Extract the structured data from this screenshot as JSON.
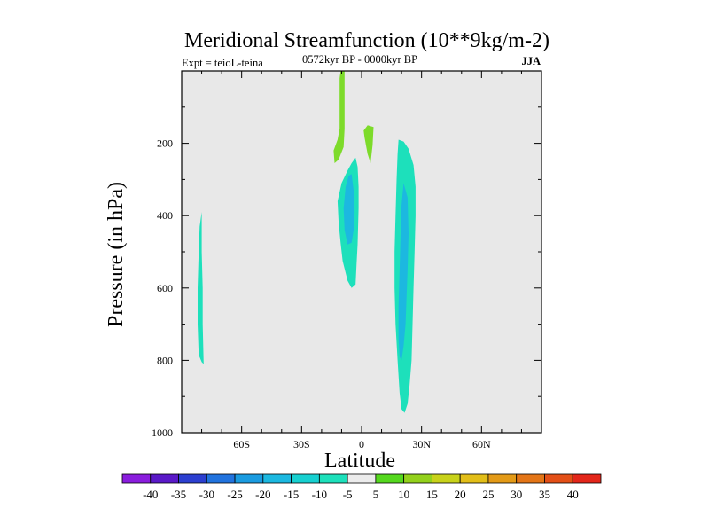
{
  "chart_data": {
    "type": "contour",
    "title": "Meridional Streamfunction (10**9kg/m-2)",
    "subtitle_left": "Expt = teioL-teina",
    "subtitle_center": "0572kyr BP - 0000kyr BP",
    "subtitle_right": "JJA",
    "xlabel": "Latitude",
    "ylabel": "Pressure (in hPa)",
    "xlim": [
      -90,
      90
    ],
    "ylim": [
      1000,
      0
    ],
    "x_ticks": [
      {
        "value": -60,
        "label": "60S"
      },
      {
        "value": -30,
        "label": "30S"
      },
      {
        "value": 0,
        "label": "0"
      },
      {
        "value": 30,
        "label": "30N"
      },
      {
        "value": 60,
        "label": "60N"
      }
    ],
    "y_ticks": [
      {
        "value": 200,
        "label": "200"
      },
      {
        "value": 400,
        "label": "400"
      },
      {
        "value": 600,
        "label": "600"
      },
      {
        "value": 800,
        "label": "800"
      },
      {
        "value": 1000,
        "label": "1000"
      }
    ],
    "colorbar": {
      "labels": [
        "-40",
        "-35",
        "-30",
        "-25",
        "-20",
        "-15",
        "-10",
        "-5",
        "5",
        "10",
        "15",
        "20",
        "25",
        "30",
        "35",
        "40"
      ],
      "colors": [
        "#8a1ddd",
        "#5a19c8",
        "#2c3fd0",
        "#2173de",
        "#1a9be0",
        "#1cb8e0",
        "#17d0d0",
        "#1de0bb",
        "#ececec",
        "#55d81e",
        "#93d11c",
        "#c8d21a",
        "#e2be18",
        "#e39a17",
        "#e37517",
        "#e34f17",
        "#e3261a"
      ]
    },
    "regions": [
      {
        "name": "positive-upper-column",
        "level": "5 to 10",
        "color": "#7ddb2a",
        "outline": [
          [
            -10.5,
            0
          ],
          [
            -8.5,
            0
          ],
          [
            -8.5,
            90
          ],
          [
            -8.5,
            160
          ],
          [
            -9,
            210
          ],
          [
            -11.5,
            245
          ],
          [
            -13.5,
            255
          ],
          [
            -14,
            220
          ],
          [
            -12,
            190
          ],
          [
            -11,
            160
          ],
          [
            -11,
            110
          ],
          [
            -11,
            20
          ]
        ]
      },
      {
        "name": "positive-small-patch",
        "level": "5 to 10",
        "color": "#7ddb2a",
        "outline": [
          [
            1,
            165
          ],
          [
            3,
            150
          ],
          [
            6,
            155
          ],
          [
            5.5,
            205
          ],
          [
            4.5,
            255
          ],
          [
            3,
            230
          ],
          [
            1.5,
            185
          ]
        ]
      },
      {
        "name": "negative-equatorial-outer",
        "level": "-10 to -5",
        "color": "#1de0bb",
        "outline": [
          [
            -3,
            240
          ],
          [
            -2,
            265
          ],
          [
            -1.5,
            320
          ],
          [
            -1.5,
            380
          ],
          [
            -2,
            480
          ],
          [
            -2.5,
            530
          ],
          [
            -3,
            590
          ],
          [
            -5,
            600
          ],
          [
            -7,
            580
          ],
          [
            -9.5,
            525
          ],
          [
            -10.5,
            475
          ],
          [
            -11.5,
            420
          ],
          [
            -12,
            360
          ],
          [
            -10,
            310
          ],
          [
            -7,
            275
          ],
          [
            -5,
            255
          ]
        ]
      },
      {
        "name": "negative-equatorial-core",
        "level": "-15 to -10",
        "color": "#1cb8e0",
        "outline": [
          [
            -5,
            285
          ],
          [
            -4,
            330
          ],
          [
            -3.5,
            390
          ],
          [
            -4,
            440
          ],
          [
            -5,
            475
          ],
          [
            -7,
            480
          ],
          [
            -8.5,
            440
          ],
          [
            -9,
            380
          ],
          [
            -8,
            320
          ],
          [
            -6.5,
            290
          ]
        ]
      },
      {
        "name": "negative-subtropical-outer",
        "level": "-10 to -5",
        "color": "#1de0bb",
        "outline": [
          [
            18.5,
            190
          ],
          [
            21,
            195
          ],
          [
            23.5,
            215
          ],
          [
            26,
            260
          ],
          [
            27,
            320
          ],
          [
            27,
            400
          ],
          [
            26.5,
            500
          ],
          [
            26,
            600
          ],
          [
            25.5,
            700
          ],
          [
            25,
            800
          ],
          [
            24,
            870
          ],
          [
            23,
            920
          ],
          [
            21.5,
            945
          ],
          [
            20,
            935
          ],
          [
            19,
            890
          ],
          [
            18,
            800
          ],
          [
            17,
            700
          ],
          [
            16.5,
            600
          ],
          [
            16.5,
            500
          ],
          [
            17,
            400
          ],
          [
            17.5,
            300
          ],
          [
            18,
            230
          ]
        ]
      },
      {
        "name": "negative-subtropical-core",
        "level": "-15 to -10",
        "color": "#1cb8e0",
        "outline": [
          [
            21,
            310
          ],
          [
            23,
            350
          ],
          [
            23.5,
            450
          ],
          [
            23,
            550
          ],
          [
            22.5,
            620
          ],
          [
            22,
            700
          ],
          [
            21,
            760
          ],
          [
            20,
            800
          ],
          [
            19,
            790
          ],
          [
            18.5,
            740
          ],
          [
            18.5,
            650
          ],
          [
            19,
            550
          ],
          [
            19.5,
            450
          ],
          [
            20,
            370
          ]
        ]
      },
      {
        "name": "negative-southern-sliver",
        "level": "-10 to -5",
        "color": "#1de0bb",
        "outline": [
          [
            -80,
            390
          ],
          [
            -80,
            500
          ],
          [
            -79.5,
            600
          ],
          [
            -79.5,
            700
          ],
          [
            -79,
            810
          ],
          [
            -80,
            805
          ],
          [
            -81.5,
            785
          ],
          [
            -82,
            700
          ],
          [
            -82,
            600
          ],
          [
            -81.5,
            500
          ],
          [
            -81,
            430
          ]
        ]
      }
    ]
  }
}
